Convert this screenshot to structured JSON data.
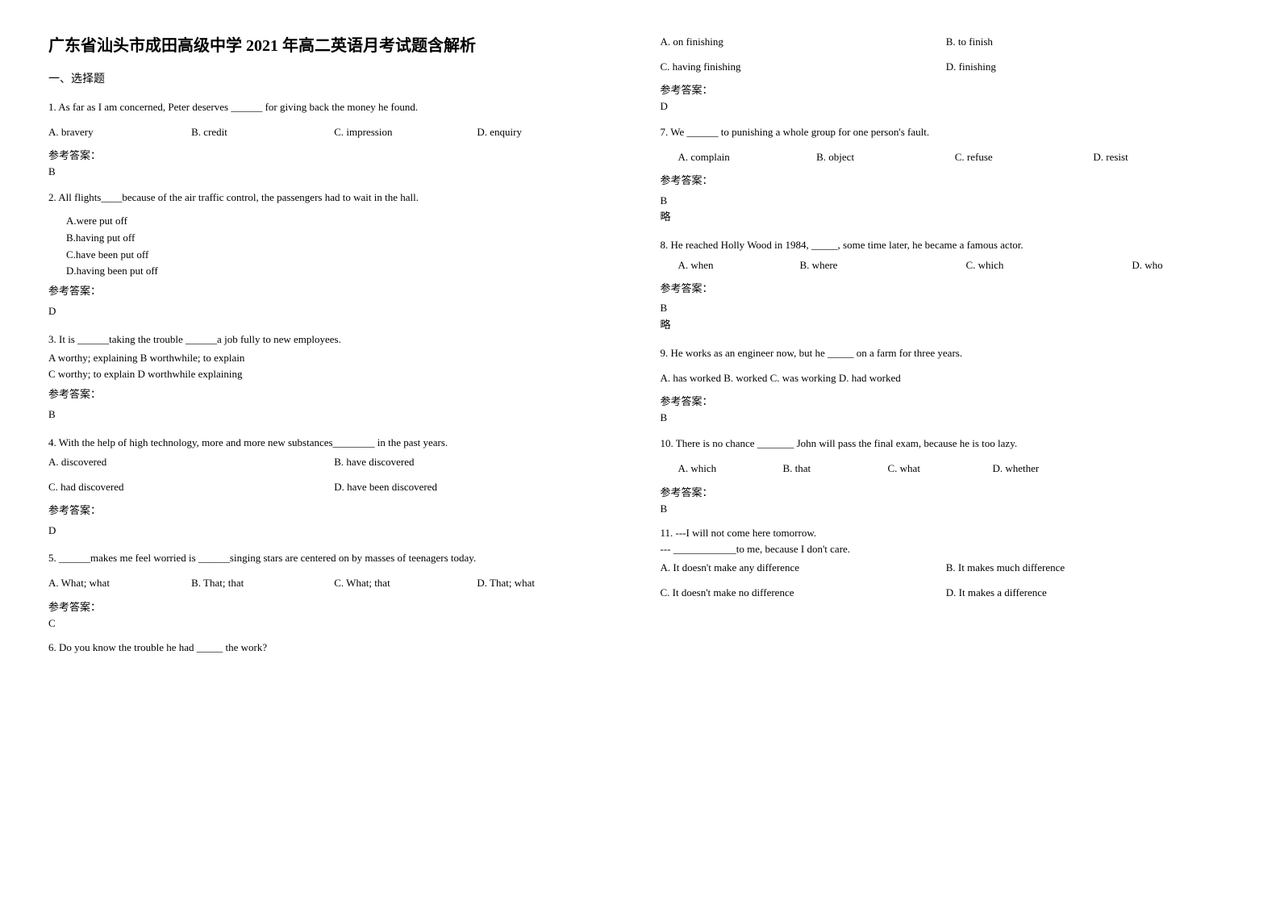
{
  "title": "广东省汕头市成田高级中学 2021 年高二英语月考试题含解析",
  "section1": "一、选择题",
  "ansLabel": "参考答案：",
  "note": "略",
  "q1": {
    "text": "1. As far as I am concerned, Peter deserves ______ for giving back the money he found.",
    "A": "A. bravery",
    "B": "B. credit",
    "C": "C. impression",
    "D": "D. enquiry",
    "ans": "B"
  },
  "q2": {
    "text": "2. All flights____because of the air traffic control, the passengers had to wait in the hall.",
    "A": "A.were put off",
    "B": "B.having put off",
    "C": "C.have been put off",
    "D": "D.having been put off",
    "ans": "D"
  },
  "q3": {
    "text": "3. It is ______taking the trouble ______a job fully to new employees.",
    "line2": "A worthy; explaining  B worthwhile; to explain",
    "line3": "C worthy; to explain  D worthwhile explaining",
    "ans": "B"
  },
  "q4": {
    "text": "4. With the help of high technology, more and more new substances________ in the past years.",
    "A": "A. discovered",
    "B": "B. have discovered",
    "C": "C. had discovered",
    "D": "D. have been discovered",
    "ans": "D"
  },
  "q5": {
    "text": "5. ______makes me feel worried is ______singing stars are centered on by masses of teenagers today.",
    "A": "A. What; what",
    "B": "B. That; that",
    "C": "C. What; that",
    "D": "D. That; what",
    "ans": "C"
  },
  "q6": {
    "text": "6. Do you know the trouble he had _____ the work?",
    "A": "A. on finishing",
    "B": "B. to finish",
    "C": "C. having finishing",
    "D": "D. finishing",
    "ans": "D"
  },
  "q7": {
    "text": "7. We ______ to punishing a whole group for one person's fault.",
    "A": "A. complain",
    "B": "B. object",
    "C": "C. refuse",
    "D": "D. resist",
    "ans": "B"
  },
  "q8": {
    "text": "8. He reached Holly Wood in 1984, _____, some time later, he became a famous actor.",
    "A": "A. when",
    "B": "B. where",
    "C": "C. which",
    "D": "D. who",
    "ans": "B"
  },
  "q9": {
    "text": "9. He works as an engineer now, but he _____ on a farm for three years.",
    "opts": "A. has worked   B. worked   C. was working   D. had worked",
    "ans": "B"
  },
  "q10": {
    "text": "10. There is no chance _______ John will pass the final exam, because he is too lazy.",
    "A": "A. which",
    "B": "B. that",
    "C": "C. what",
    "D": "D. whether",
    "ans": "B"
  },
  "q11": {
    "text": "11. ---I will not come here tomorrow.",
    "line2": "--- ____________to me, because I don't care.",
    "A": "A. It doesn't make any difference",
    "B": "B. It makes much difference",
    "C": "C. It doesn't make no difference",
    "D": "D. It makes a difference"
  }
}
